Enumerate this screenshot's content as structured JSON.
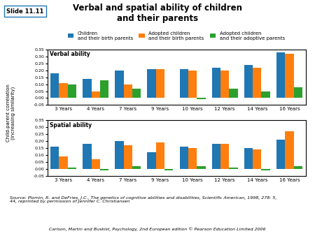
{
  "title": "Verbal and spatial ability of children\nand their parents",
  "ylabel": "Child-parent correlation\n(increasing similarity)",
  "annotations": [
    "Slide 11.11",
    "Source: Plomin, R. and DeFries, J.C., The genetics of cognitive abilities and disabilities, Scientific American, 1998, 278: 5,\n44, reprinted by permission of Jennifer C. Christiansen",
    "Carlson, Martin and Buskist, Psychology, 2nd European edition © Pearson Education Limited 2006"
  ],
  "legend": "upper center",
  "chart_data": [
    {
      "type": "bar",
      "title": "Verbal ability",
      "categories": [
        "3 Years",
        "4 Years",
        "7 Years",
        "9 Years",
        "10 Years",
        "12 Years",
        "14 Years",
        "16 Years"
      ],
      "series": [
        {
          "name": "Children\nand their birth parents",
          "values": [
            0.18,
            0.14,
            0.2,
            0.21,
            0.21,
            0.22,
            0.24,
            0.33
          ]
        },
        {
          "name": "Adopted children\nand their birth parents",
          "values": [
            0.11,
            0.05,
            0.1,
            0.21,
            0.2,
            0.2,
            0.22,
            0.32
          ]
        },
        {
          "name": "Adopted children\nand their adoptive parents",
          "values": [
            0.1,
            0.13,
            0.07,
            0.0,
            -0.01,
            0.07,
            0.05,
            0.08
          ]
        }
      ],
      "ylim": [
        -0.05,
        0.35
      ],
      "yticks": [
        {
          "value": -0.05,
          "label": "-0.05"
        },
        {
          "value": 0.0,
          "label": "0.00"
        },
        {
          "value": 0.05,
          "label": "0.05"
        },
        {
          "value": 0.1,
          "label": "0.10"
        },
        {
          "value": 0.15,
          "label": "0.15"
        },
        {
          "value": 0.2,
          "label": "0.20"
        },
        {
          "value": 0.25,
          "label": "0.25"
        },
        {
          "value": 0.3,
          "label": "0.30"
        },
        {
          "value": 0.35,
          "label": "0.35"
        }
      ],
      "grid": false
    },
    {
      "type": "bar",
      "title": "Spatial ability",
      "categories": [
        "3 Years",
        "4 Years",
        "7 Years",
        "9 Years",
        "10 Years",
        "12 Years",
        "14 Years",
        "16 Years"
      ],
      "series": [
        {
          "name": "Children\nand their birth parents",
          "values": [
            0.16,
            0.18,
            0.2,
            0.12,
            0.16,
            0.18,
            0.15,
            0.21
          ]
        },
        {
          "name": "Adopted children\nand their birth parents",
          "values": [
            0.09,
            0.07,
            0.17,
            0.19,
            0.15,
            0.18,
            0.14,
            0.27
          ]
        },
        {
          "name": "Adopted children\nand their adoptive parents",
          "values": [
            0.01,
            -0.01,
            0.02,
            -0.01,
            0.02,
            0.01,
            -0.01,
            0.02
          ]
        }
      ],
      "ylim": [
        -0.05,
        0.35
      ],
      "yticks": [
        {
          "value": -0.05,
          "label": "-0.05"
        },
        {
          "value": 0.0,
          "label": "0.00"
        },
        {
          "value": 0.05,
          "label": "0.05"
        },
        {
          "value": 0.1,
          "label": "0.10"
        },
        {
          "value": 0.15,
          "label": "0.15"
        },
        {
          "value": 0.2,
          "label": "0.20"
        },
        {
          "value": 0.25,
          "label": "0.25"
        },
        {
          "value": 0.3,
          "label": "0.30"
        },
        {
          "value": 0.35,
          "label": "0.35"
        }
      ],
      "grid": false
    }
  ]
}
